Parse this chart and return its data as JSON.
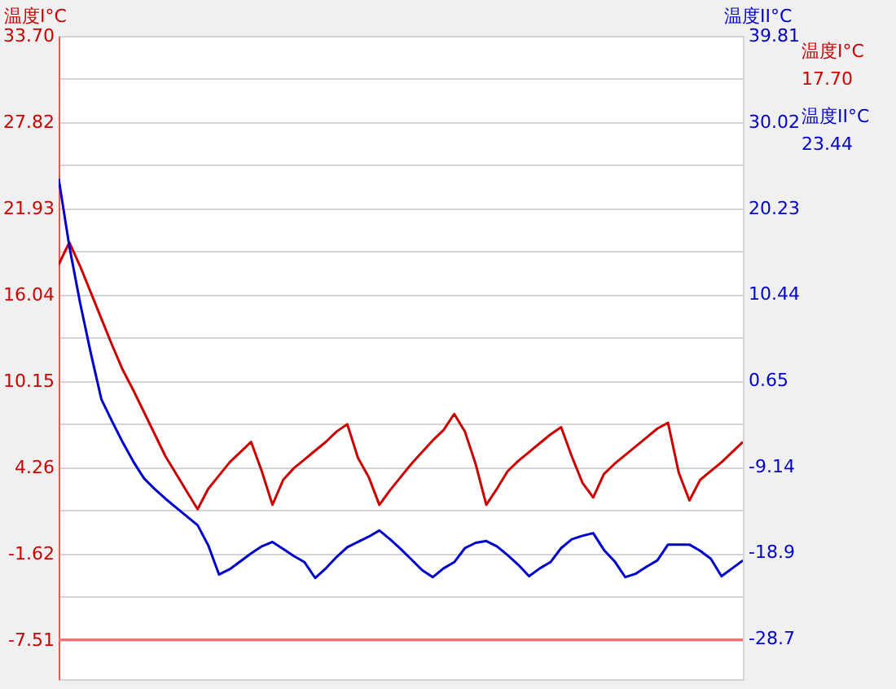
{
  "chart_data": {
    "type": "line",
    "ylabel": "温度I°C",
    "y2label": "温度II°C",
    "categories": [
      null,
      null,
      null,
      null,
      null,
      null,
      null,
      null,
      null,
      null,
      null,
      null,
      null,
      null,
      null,
      null,
      null,
      null,
      null,
      null,
      null,
      null,
      null,
      null,
      null,
      null,
      null,
      null,
      null,
      null,
      null,
      null,
      null,
      null,
      null,
      null,
      null,
      null,
      null,
      null,
      null,
      null,
      null,
      null,
      null,
      null,
      null,
      null,
      null,
      null,
      null,
      null,
      null,
      null,
      null,
      null,
      null,
      null,
      null,
      null,
      null,
      null,
      null,
      null,
      null
    ],
    "ylim": [
      -10.2,
      33.7
    ],
    "yticks": [
      {
        "value": 33.7,
        "label": "33.70"
      },
      {
        "value": 30.76,
        "label": null
      },
      {
        "value": 27.82,
        "label": "27.82"
      },
      {
        "value": 24.88,
        "label": null
      },
      {
        "value": 21.93,
        "label": "21.93"
      },
      {
        "value": 18.99,
        "label": null
      },
      {
        "value": 16.04,
        "label": "16.04"
      },
      {
        "value": 13.1,
        "label": null
      },
      {
        "value": 10.15,
        "label": "10.15"
      },
      {
        "value": 7.21,
        "label": null
      },
      {
        "value": 4.26,
        "label": "4.26"
      },
      {
        "value": 1.32,
        "label": null
      },
      {
        "value": -1.62,
        "label": "-1.62"
      },
      {
        "value": -4.57,
        "label": null
      },
      {
        "value": -7.51,
        "label": "-7.51"
      }
    ],
    "y2lim": [
      -33.3,
      39.81
    ],
    "y2ticks": [
      39.81,
      30.02,
      20.23,
      10.44,
      0.65,
      -9.14,
      -18.9,
      -28.7
    ],
    "grid": true,
    "tick_labels": "y",
    "marker": "none",
    "line_style": "solid",
    "ref_lines": [
      {
        "axis": "y",
        "value": -7.51,
        "color": "#f07070"
      }
    ],
    "annotations": [
      "17.70",
      "23.44"
    ],
    "series": [
      {
        "name": "温度I°C",
        "color": "#cc0000",
        "values": [
          18.1,
          19.6,
          18.0,
          16.2,
          14.4,
          12.6,
          10.9,
          9.5,
          8.0,
          6.5,
          5.0,
          3.8,
          2.6,
          1.4,
          2.8,
          3.7,
          4.6,
          5.3,
          6.0,
          4.0,
          1.7,
          3.4,
          4.2,
          4.8,
          5.4,
          6.0,
          6.7,
          7.2,
          4.9,
          3.6,
          1.7,
          2.7,
          3.6,
          4.5,
          5.3,
          6.1,
          6.8,
          7.9,
          6.7,
          4.5,
          1.7,
          2.8,
          4.0,
          4.7,
          5.3,
          5.9,
          6.5,
          7.0,
          5.0,
          3.2,
          2.2,
          3.8,
          4.5,
          5.1,
          5.7,
          6.3,
          6.9,
          7.3,
          3.9,
          2.0,
          3.4,
          4.0,
          4.6,
          5.3,
          6.0
        ]
      },
      {
        "name": "温度II°C",
        "color": "#0000cc",
        "axis": "y2",
        "values": [
          23.6,
          15.9,
          9.5,
          3.8,
          -1.5,
          -4.0,
          -6.4,
          -8.6,
          -10.5,
          -11.7,
          -12.8,
          -13.8,
          -14.8,
          -15.8,
          -18.1,
          -21.4,
          -20.8,
          -19.9,
          -19.0,
          -18.2,
          -17.7,
          -18.5,
          -19.3,
          -20.0,
          -21.8,
          -20.7,
          -19.4,
          -18.3,
          -17.7,
          -17.1,
          -16.4,
          -17.4,
          -18.5,
          -19.7,
          -20.9,
          -21.7,
          -20.7,
          -20.0,
          -18.4,
          -17.8,
          -17.6,
          -18.2,
          -19.2,
          -20.3,
          -21.6,
          -20.7,
          -20.0,
          -18.4,
          -17.4,
          -17.0,
          -16.7,
          -18.6,
          -19.9,
          -21.7,
          -21.3,
          -20.5,
          -19.8,
          -18.0,
          -18.0,
          -18.0,
          -18.7,
          -19.6,
          -21.6,
          -20.7,
          -19.8
        ]
      }
    ]
  }
}
